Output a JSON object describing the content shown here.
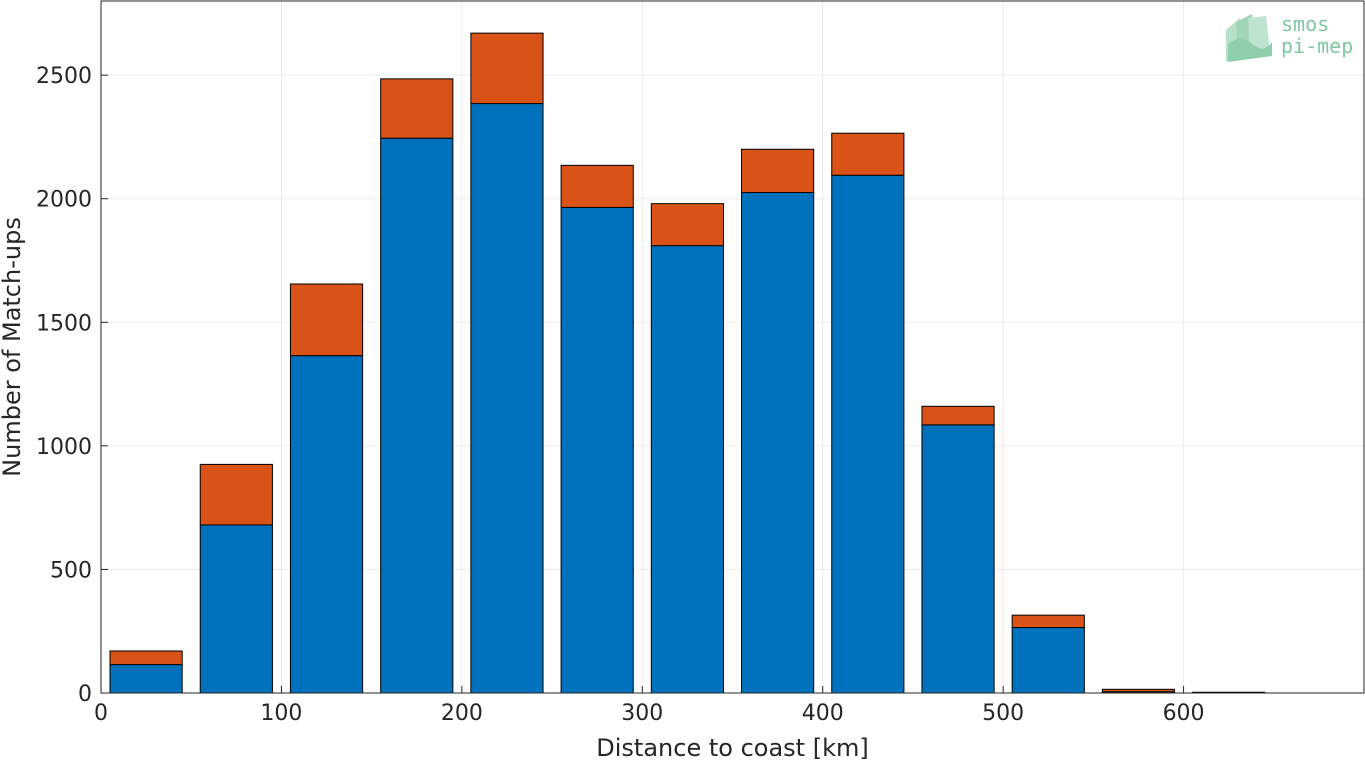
{
  "chart_data": {
    "type": "bar",
    "stacked": true,
    "title": "",
    "xlabel": "Distance to coast [km]",
    "ylabel": "Number of Match-ups",
    "xlim": [
      0,
      700
    ],
    "ylim": [
      0,
      2800
    ],
    "grid": true,
    "bin_width": 50,
    "x": [
      25,
      75,
      125,
      175,
      225,
      275,
      325,
      375,
      425,
      475,
      525,
      575,
      625,
      675
    ],
    "x_ticks": [
      "0",
      "100",
      "200",
      "300",
      "400",
      "500",
      "600"
    ],
    "y_ticks": [
      "0",
      "500",
      "1000",
      "1500",
      "2000",
      "2500"
    ],
    "series": [
      {
        "values": [
          115,
          680,
          1365,
          2245,
          2385,
          1965,
          1810,
          2025,
          2095,
          1085,
          265,
          5,
          0,
          0
        ]
      },
      {
        "values": [
          55,
          245,
          290,
          240,
          285,
          170,
          170,
          175,
          170,
          75,
          50,
          10,
          3,
          0
        ]
      }
    ],
    "colors": {
      "series_1": "#0072BD",
      "series_2": "#D95319",
      "grid": "#ebebeb",
      "axis": "#262626"
    }
  },
  "logo": {
    "line1": "smos",
    "line2": "pi-mep",
    "color": "#7fc9a0"
  }
}
